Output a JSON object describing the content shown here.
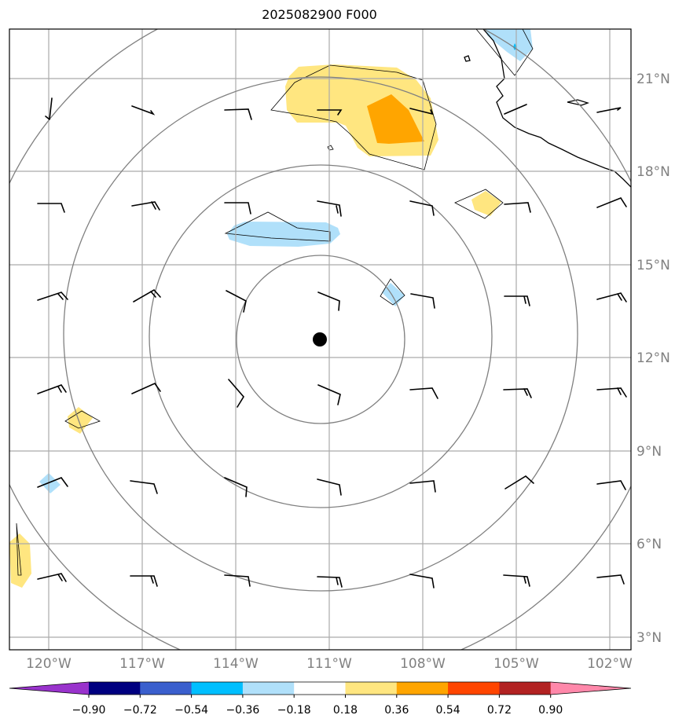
{
  "title": "2025082900 F000",
  "lon_labels": [
    "120°W",
    "117°W",
    "114°W",
    "111°W",
    "108°W",
    "105°W",
    "102°W"
  ],
  "lat_labels": [
    "21°N",
    "18°N",
    "15°N",
    "12°N",
    "9°N",
    "6°N",
    "3°N"
  ],
  "colorbar": {
    "tick_labels": [
      "−0.90",
      "−0.72",
      "−0.54",
      "−0.36",
      "−0.18",
      "0.18",
      "0.36",
      "0.54",
      "0.72",
      "0.90"
    ],
    "colors": [
      "#9933cc",
      "#000080",
      "#3a5fcd",
      "#00bfff",
      "#b0e0fa",
      "#ffffff",
      "#ffe680",
      "#ffa500",
      "#ff4500",
      "#b22222",
      "#ff88aa"
    ]
  },
  "storm_center": {
    "lat": 12.6,
    "lon": -111.3
  },
  "colors": {
    "grid": "#aaaaaa",
    "range_ring": "#808080",
    "coast": "#000000",
    "pos_light": "#ffe680",
    "pos_mid": "#ffa500",
    "neg_light": "#b0e0fa",
    "neg_mid": "#00bfff"
  }
}
